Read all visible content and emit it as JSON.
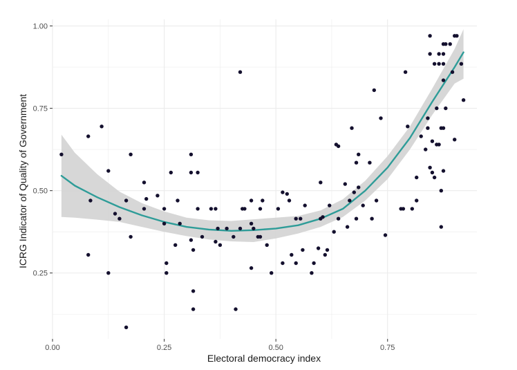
{
  "chart_data": {
    "type": "scatter",
    "title": "",
    "xlabel": "Electoral democracy index",
    "ylabel": "ICRG Indicator of Quality of Government",
    "xlim": [
      0,
      0.95
    ],
    "ylim": [
      0.05,
      1.02
    ],
    "x_ticks": [
      0.0,
      0.25,
      0.5,
      0.75
    ],
    "x_tick_labels": [
      "0.00",
      "0.25",
      "0.50",
      "0.75"
    ],
    "y_ticks": [
      0.25,
      0.5,
      0.75,
      1.0
    ],
    "y_tick_labels": [
      "0.25",
      "0.50",
      "0.75",
      "1.00"
    ],
    "grid": true,
    "legend": "none",
    "colors": {
      "points": "#14102e",
      "fit_line": "#2e9c98",
      "ribbon": "#d3d3d3",
      "grid": "#ebebeb"
    },
    "points": [
      [
        0.02,
        0.61
      ],
      [
        0.08,
        0.305
      ],
      [
        0.08,
        0.665
      ],
      [
        0.085,
        0.47
      ],
      [
        0.11,
        0.695
      ],
      [
        0.125,
        0.25
      ],
      [
        0.125,
        0.56
      ],
      [
        0.14,
        0.43
      ],
      [
        0.15,
        0.415
      ],
      [
        0.165,
        0.085
      ],
      [
        0.165,
        0.47
      ],
      [
        0.175,
        0.36
      ],
      [
        0.175,
        0.61
      ],
      [
        0.205,
        0.445
      ],
      [
        0.205,
        0.525
      ],
      [
        0.21,
        0.475
      ],
      [
        0.235,
        0.485
      ],
      [
        0.25,
        0.4
      ],
      [
        0.25,
        0.445
      ],
      [
        0.255,
        0.28
      ],
      [
        0.255,
        0.25
      ],
      [
        0.265,
        0.555
      ],
      [
        0.275,
        0.335
      ],
      [
        0.28,
        0.47
      ],
      [
        0.285,
        0.4
      ],
      [
        0.31,
        0.61
      ],
      [
        0.31,
        0.555
      ],
      [
        0.31,
        0.35
      ],
      [
        0.315,
        0.195
      ],
      [
        0.315,
        0.14
      ],
      [
        0.315,
        0.32
      ],
      [
        0.325,
        0.445
      ],
      [
        0.325,
        0.555
      ],
      [
        0.335,
        0.36
      ],
      [
        0.355,
        0.445
      ],
      [
        0.365,
        0.445
      ],
      [
        0.365,
        0.345
      ],
      [
        0.37,
        0.385
      ],
      [
        0.375,
        0.335
      ],
      [
        0.39,
        0.385
      ],
      [
        0.405,
        0.36
      ],
      [
        0.41,
        0.14
      ],
      [
        0.42,
        0.86
      ],
      [
        0.42,
        0.385
      ],
      [
        0.425,
        0.445
      ],
      [
        0.43,
        0.445
      ],
      [
        0.445,
        0.4
      ],
      [
        0.445,
        0.47
      ],
      [
        0.445,
        0.265
      ],
      [
        0.45,
        0.385
      ],
      [
        0.46,
        0.36
      ],
      [
        0.465,
        0.445
      ],
      [
        0.465,
        0.36
      ],
      [
        0.47,
        0.47
      ],
      [
        0.48,
        0.335
      ],
      [
        0.49,
        0.25
      ],
      [
        0.505,
        0.445
      ],
      [
        0.515,
        0.495
      ],
      [
        0.515,
        0.28
      ],
      [
        0.525,
        0.49
      ],
      [
        0.53,
        0.47
      ],
      [
        0.535,
        0.305
      ],
      [
        0.545,
        0.415
      ],
      [
        0.545,
        0.28
      ],
      [
        0.555,
        0.415
      ],
      [
        0.56,
        0.32
      ],
      [
        0.565,
        0.455
      ],
      [
        0.58,
        0.25
      ],
      [
        0.585,
        0.28
      ],
      [
        0.595,
        0.325
      ],
      [
        0.6,
        0.415
      ],
      [
        0.6,
        0.525
      ],
      [
        0.605,
        0.42
      ],
      [
        0.61,
        0.305
      ],
      [
        0.615,
        0.32
      ],
      [
        0.62,
        0.455
      ],
      [
        0.63,
        0.375
      ],
      [
        0.635,
        0.64
      ],
      [
        0.64,
        0.635
      ],
      [
        0.64,
        0.415
      ],
      [
        0.655,
        0.52
      ],
      [
        0.66,
        0.39
      ],
      [
        0.665,
        0.47
      ],
      [
        0.67,
        0.69
      ],
      [
        0.675,
        0.495
      ],
      [
        0.68,
        0.415
      ],
      [
        0.68,
        0.585
      ],
      [
        0.685,
        0.61
      ],
      [
        0.685,
        0.51
      ],
      [
        0.695,
        0.455
      ],
      [
        0.71,
        0.585
      ],
      [
        0.715,
        0.415
      ],
      [
        0.72,
        0.805
      ],
      [
        0.725,
        0.47
      ],
      [
        0.735,
        0.72
      ],
      [
        0.745,
        0.365
      ],
      [
        0.78,
        0.445
      ],
      [
        0.785,
        0.445
      ],
      [
        0.79,
        0.86
      ],
      [
        0.795,
        0.695
      ],
      [
        0.805,
        0.445
      ],
      [
        0.815,
        0.47
      ],
      [
        0.815,
        0.54
      ],
      [
        0.825,
        0.665
      ],
      [
        0.835,
        0.625
      ],
      [
        0.84,
        0.72
      ],
      [
        0.84,
        0.69
      ],
      [
        0.845,
        0.97
      ],
      [
        0.845,
        0.915
      ],
      [
        0.845,
        0.57
      ],
      [
        0.85,
        0.555
      ],
      [
        0.85,
        0.65
      ],
      [
        0.855,
        0.54
      ],
      [
        0.855,
        0.885
      ],
      [
        0.86,
        0.75
      ],
      [
        0.86,
        0.64
      ],
      [
        0.865,
        0.915
      ],
      [
        0.865,
        0.885
      ],
      [
        0.865,
        0.64
      ],
      [
        0.87,
        0.5
      ],
      [
        0.87,
        0.39
      ],
      [
        0.87,
        0.69
      ],
      [
        0.875,
        0.945
      ],
      [
        0.875,
        0.915
      ],
      [
        0.875,
        0.885
      ],
      [
        0.875,
        0.835
      ],
      [
        0.875,
        0.69
      ],
      [
        0.875,
        0.56
      ],
      [
        0.88,
        0.945
      ],
      [
        0.88,
        0.75
      ],
      [
        0.89,
        0.945
      ],
      [
        0.895,
        0.86
      ],
      [
        0.9,
        0.97
      ],
      [
        0.9,
        0.655
      ],
      [
        0.905,
        0.97
      ],
      [
        0.915,
        0.885
      ],
      [
        0.92,
        0.775
      ]
    ],
    "fit": {
      "x": [
        0.02,
        0.05,
        0.1,
        0.15,
        0.2,
        0.25,
        0.3,
        0.35,
        0.4,
        0.45,
        0.5,
        0.55,
        0.6,
        0.65,
        0.7,
        0.75,
        0.8,
        0.85,
        0.9,
        0.92
      ],
      "y": [
        0.545,
        0.515,
        0.48,
        0.45,
        0.425,
        0.405,
        0.39,
        0.382,
        0.378,
        0.38,
        0.385,
        0.395,
        0.415,
        0.445,
        0.5,
        0.57,
        0.66,
        0.77,
        0.875,
        0.92
      ],
      "lower": [
        0.42,
        0.418,
        0.412,
        0.405,
        0.39,
        0.375,
        0.362,
        0.352,
        0.346,
        0.344,
        0.355,
        0.37,
        0.39,
        0.42,
        0.47,
        0.535,
        0.625,
        0.73,
        0.825,
        0.84
      ],
      "upper": [
        0.67,
        0.615,
        0.55,
        0.497,
        0.462,
        0.437,
        0.418,
        0.41,
        0.408,
        0.413,
        0.418,
        0.423,
        0.44,
        0.474,
        0.53,
        0.605,
        0.695,
        0.81,
        0.93,
        0.99
      ]
    }
  }
}
